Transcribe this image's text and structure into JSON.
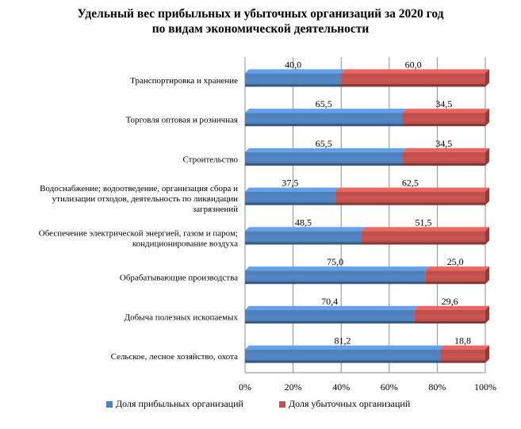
{
  "chart_data": {
    "type": "bar",
    "orientation": "horizontal-stacked-100",
    "title_line1": "Удельный вес прибыльных и убыточных организаций за 2020 год",
    "title_line2": "по видам экономической деятельности",
    "categories": [
      [
        "Транспортировка и хранение"
      ],
      [
        "Торговля оптовая и розничная"
      ],
      [
        "Строительство"
      ],
      [
        "Водоснабжение; водоотведение, организация сбора и",
        "утилизации отходов, деятельность по ликвидации",
        "загрязнений"
      ],
      [
        "Обеспечение электрической энергией, газом и паром;",
        "кондиционирование воздуха"
      ],
      [
        "Обрабатывающие производства"
      ],
      [
        "Добыча полезных ископаемых"
      ],
      [
        "Сельское, лесное хозяйство, охота"
      ]
    ],
    "series": [
      {
        "name": "Доля прибыльных организаций",
        "color": "#4f81bd",
        "values": [
          40.0,
          65.5,
          65.5,
          37.5,
          48.5,
          75.0,
          70.4,
          81.2
        ],
        "labels": [
          "40,0",
          "65,5",
          "65,5",
          "37,5",
          "48,5",
          "75,0",
          "70,4",
          "81,2"
        ]
      },
      {
        "name": "Доля убыточных организаций",
        "color": "#c0504d",
        "values": [
          60.0,
          34.5,
          34.5,
          62.5,
          51.5,
          25.0,
          29.6,
          18.8
        ],
        "labels": [
          "60,0",
          "34,5",
          "34,5",
          "62,5",
          "51,5",
          "25,0",
          "29,6",
          "18,8"
        ]
      }
    ],
    "x_ticks": [
      "0%",
      "20%",
      "40%",
      "60%",
      "80%",
      "100%"
    ],
    "xlim": [
      0,
      100
    ],
    "grid": true,
    "legend_position": "bottom"
  }
}
